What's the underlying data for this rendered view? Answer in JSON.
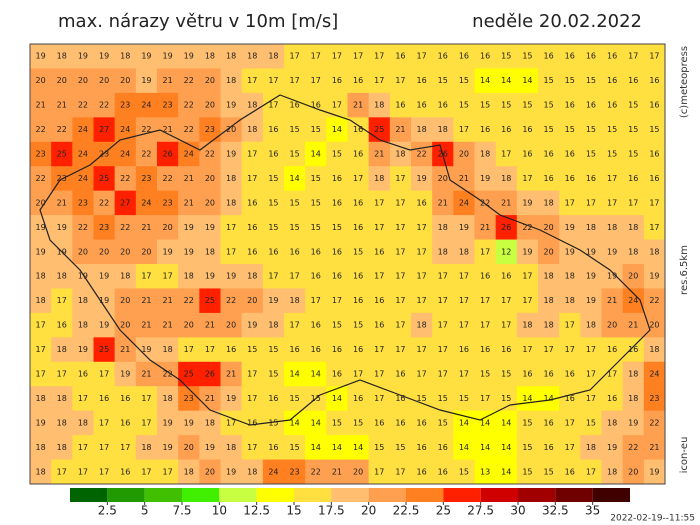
{
  "header": {
    "title": "max. nárazy větru v 10m [m/s]",
    "date": "neděle 20.02.2022"
  },
  "side_labels": {
    "copyright": "(c)meteopress",
    "resolution": "res.6.5km",
    "model": "icon-eu"
  },
  "footer": {
    "timestamp": "2022-02-19--11:55"
  },
  "legend": {
    "ticks": [
      2.5,
      5,
      7.5,
      10,
      12.5,
      15,
      17.5,
      20,
      22.5,
      25,
      27.5,
      30,
      32.5,
      35
    ],
    "colors": [
      "#006400",
      "#209a00",
      "#40c000",
      "#40f000",
      "#c8ff40",
      "#ffff00",
      "#ffe040",
      "#ffbe70",
      "#ffa050",
      "#ff8020",
      "#ff2000",
      "#d00000",
      "#a00000",
      "#700000",
      "#400000"
    ]
  },
  "grid": {
    "rows": [
      [
        19,
        18,
        19,
        19,
        18,
        19,
        19,
        19,
        18,
        18,
        18,
        18,
        17,
        17,
        17,
        17,
        17,
        16,
        17,
        16,
        16,
        16,
        15,
        15,
        16,
        16,
        16,
        16,
        17,
        17
      ],
      [
        20,
        20,
        20,
        20,
        20,
        19,
        21,
        22,
        20,
        18,
        17,
        17,
        17,
        17,
        16,
        16,
        17,
        17,
        16,
        15,
        15,
        14,
        14,
        14,
        15,
        15,
        15,
        16,
        16,
        16
      ],
      [
        21,
        21,
        22,
        22,
        23,
        24,
        23,
        22,
        20,
        19,
        18,
        17,
        16,
        16,
        17,
        21,
        18,
        16,
        16,
        16,
        15,
        15,
        15,
        15,
        15,
        16,
        16,
        16,
        15,
        16
      ],
      [
        22,
        22,
        24,
        27,
        24,
        22,
        21,
        22,
        23,
        20,
        18,
        16,
        15,
        15,
        14,
        16,
        25,
        21,
        18,
        18,
        17,
        16,
        16,
        16,
        15,
        15,
        15,
        15,
        15,
        15
      ],
      [
        23,
        25,
        24,
        23,
        24,
        22,
        26,
        24,
        22,
        19,
        17,
        16,
        15,
        14,
        15,
        16,
        21,
        18,
        22,
        26,
        20,
        18,
        17,
        16,
        16,
        16,
        15,
        15,
        15,
        16
      ],
      [
        22,
        23,
        24,
        25,
        22,
        23,
        22,
        21,
        20,
        18,
        17,
        15,
        14,
        15,
        16,
        17,
        18,
        17,
        19,
        20,
        21,
        19,
        18,
        17,
        16,
        16,
        16,
        17,
        16,
        16
      ],
      [
        20,
        21,
        23,
        22,
        27,
        24,
        23,
        21,
        20,
        18,
        16,
        15,
        15,
        15,
        16,
        16,
        17,
        17,
        16,
        21,
        24,
        22,
        21,
        19,
        18,
        17,
        17,
        17,
        17,
        17
      ],
      [
        19,
        19,
        22,
        23,
        22,
        21,
        20,
        19,
        19,
        17,
        16,
        15,
        15,
        15,
        15,
        16,
        17,
        17,
        17,
        18,
        19,
        21,
        26,
        22,
        20,
        19,
        18,
        18,
        18,
        17
      ],
      [
        19,
        19,
        20,
        20,
        20,
        20,
        19,
        19,
        18,
        17,
        16,
        16,
        16,
        16,
        16,
        15,
        16,
        17,
        17,
        18,
        18,
        17,
        12,
        19,
        20,
        19,
        19,
        19,
        18,
        18
      ],
      [
        18,
        18,
        19,
        19,
        18,
        17,
        17,
        18,
        19,
        19,
        18,
        17,
        17,
        16,
        16,
        16,
        17,
        17,
        17,
        17,
        17,
        16,
        16,
        17,
        18,
        18,
        19,
        19,
        20,
        19
      ],
      [
        18,
        17,
        18,
        19,
        20,
        21,
        21,
        22,
        25,
        22,
        20,
        19,
        18,
        17,
        17,
        16,
        16,
        17,
        17,
        17,
        17,
        17,
        17,
        17,
        18,
        18,
        19,
        21,
        24,
        22
      ],
      [
        17,
        16,
        18,
        19,
        20,
        21,
        21,
        20,
        21,
        20,
        19,
        18,
        17,
        16,
        15,
        15,
        16,
        17,
        18,
        17,
        17,
        17,
        17,
        18,
        18,
        17,
        18,
        20,
        21,
        20
      ],
      [
        17,
        18,
        19,
        25,
        21,
        19,
        18,
        17,
        17,
        16,
        15,
        15,
        16,
        16,
        16,
        16,
        17,
        17,
        17,
        17,
        16,
        16,
        16,
        17,
        17,
        17,
        17,
        16,
        16,
        18
      ],
      [
        17,
        17,
        16,
        17,
        19,
        21,
        22,
        25,
        26,
        21,
        17,
        15,
        14,
        14,
        16,
        17,
        17,
        16,
        17,
        17,
        17,
        15,
        15,
        16,
        16,
        16,
        17,
        17,
        18,
        24
      ],
      [
        18,
        18,
        17,
        16,
        16,
        17,
        18,
        23,
        21,
        19,
        17,
        16,
        15,
        15,
        14,
        16,
        17,
        16,
        15,
        15,
        15,
        17,
        15,
        14,
        14,
        16,
        17,
        16,
        18,
        23
      ],
      [
        19,
        18,
        18,
        17,
        16,
        17,
        19,
        19,
        18,
        17,
        16,
        15,
        14,
        14,
        15,
        15,
        16,
        16,
        16,
        15,
        14,
        14,
        14,
        15,
        16,
        17,
        15,
        18,
        19,
        22
      ],
      [
        18,
        18,
        17,
        17,
        17,
        18,
        19,
        20,
        19,
        18,
        17,
        16,
        15,
        14,
        14,
        14,
        15,
        15,
        16,
        16,
        14,
        14,
        14,
        15,
        16,
        17,
        18,
        19,
        22,
        21
      ],
      [
        18,
        17,
        17,
        17,
        16,
        17,
        17,
        18,
        20,
        19,
        18,
        24,
        23,
        22,
        21,
        20,
        17,
        17,
        16,
        16,
        15,
        13,
        14,
        15,
        15,
        16,
        17,
        18,
        20,
        19
      ]
    ]
  }
}
